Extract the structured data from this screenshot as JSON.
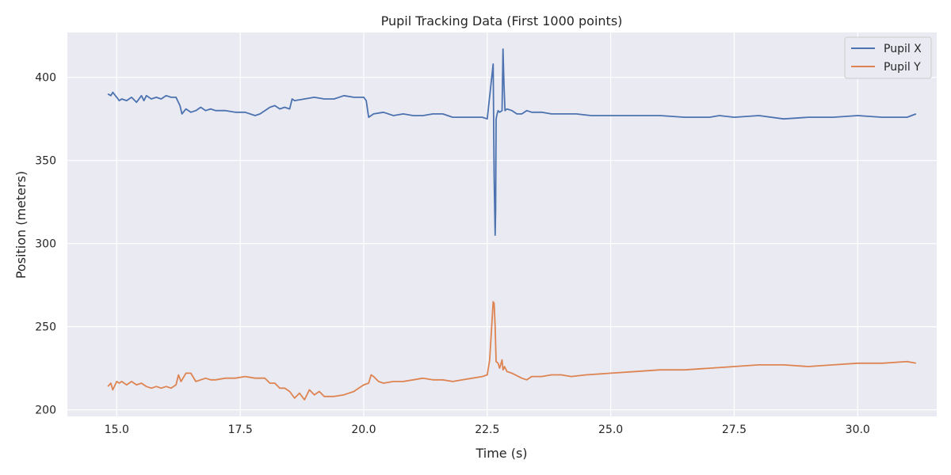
{
  "chart_data": {
    "type": "line",
    "title": "Pupil Tracking Data (First 1000 points)",
    "xlabel": "Time (s)",
    "ylabel": "Position (meters)",
    "xlim": [
      14.0,
      31.6
    ],
    "ylim": [
      196,
      427
    ],
    "xticks": [
      15.0,
      17.5,
      20.0,
      22.5,
      25.0,
      27.5,
      30.0
    ],
    "xtick_labels": [
      "15.0",
      "17.5",
      "20.0",
      "22.5",
      "25.0",
      "27.5",
      "30.0"
    ],
    "yticks": [
      200,
      250,
      300,
      350,
      400
    ],
    "ytick_labels": [
      "200",
      "250",
      "300",
      "350",
      "400"
    ],
    "grid": true,
    "legend_position": "top-right",
    "colors": {
      "background": "#eaeaf2",
      "grid": "#ffffff",
      "pupil_x": "#4c72b0",
      "pupil_y": "#dd8452"
    },
    "series": [
      {
        "name": "Pupil X",
        "color": "#4c72b0",
        "x": [
          14.82,
          14.88,
          14.92,
          15.0,
          15.05,
          15.1,
          15.2,
          15.3,
          15.4,
          15.5,
          15.55,
          15.6,
          15.7,
          15.8,
          15.9,
          16.0,
          16.1,
          16.2,
          16.28,
          16.32,
          16.4,
          16.5,
          16.6,
          16.7,
          16.8,
          16.9,
          17.0,
          17.2,
          17.4,
          17.6,
          17.8,
          17.9,
          18.0,
          18.1,
          18.2,
          18.3,
          18.4,
          18.5,
          18.55,
          18.6,
          18.8,
          19.0,
          19.2,
          19.4,
          19.6,
          19.8,
          20.0,
          20.05,
          20.1,
          20.2,
          20.4,
          20.6,
          20.8,
          21.0,
          21.2,
          21.4,
          21.6,
          21.8,
          22.0,
          22.2,
          22.4,
          22.5,
          22.62,
          22.64,
          22.66,
          22.67,
          22.68,
          22.7,
          22.72,
          22.75,
          22.8,
          22.82,
          22.84,
          22.86,
          22.9,
          23.0,
          23.1,
          23.2,
          23.3,
          23.4,
          23.6,
          23.8,
          24.0,
          24.3,
          24.6,
          25.0,
          25.5,
          26.0,
          26.5,
          27.0,
          27.2,
          27.5,
          28.0,
          28.5,
          29.0,
          29.5,
          30.0,
          30.5,
          31.0,
          31.18
        ],
        "values": [
          390,
          389,
          391,
          388,
          386,
          387,
          386,
          388,
          385,
          389,
          386,
          389,
          387,
          388,
          387,
          389,
          388,
          388,
          383,
          378,
          381,
          379,
          380,
          382,
          380,
          381,
          380,
          380,
          379,
          379,
          377,
          378,
          380,
          382,
          383,
          381,
          382,
          381,
          387,
          386,
          387,
          388,
          387,
          387,
          389,
          388,
          388,
          386,
          376,
          378,
          379,
          377,
          378,
          377,
          377,
          378,
          378,
          376,
          376,
          376,
          376,
          375,
          408,
          340,
          305,
          320,
          375,
          378,
          380,
          379,
          380,
          417,
          395,
          380,
          381,
          380,
          378,
          378,
          380,
          379,
          379,
          378,
          378,
          378,
          377,
          377,
          377,
          377,
          376,
          376,
          377,
          376,
          377,
          375,
          376,
          376,
          377,
          376,
          376,
          378
        ]
      },
      {
        "name": "Pupil Y",
        "color": "#dd8452",
        "x": [
          14.82,
          14.88,
          14.92,
          15.0,
          15.05,
          15.1,
          15.2,
          15.3,
          15.4,
          15.5,
          15.6,
          15.7,
          15.8,
          15.9,
          16.0,
          16.1,
          16.2,
          16.25,
          16.3,
          16.4,
          16.5,
          16.6,
          16.7,
          16.8,
          16.9,
          17.0,
          17.2,
          17.4,
          17.6,
          17.8,
          18.0,
          18.1,
          18.2,
          18.3,
          18.4,
          18.5,
          18.6,
          18.7,
          18.8,
          18.9,
          19.0,
          19.1,
          19.2,
          19.4,
          19.6,
          19.8,
          19.9,
          20.0,
          20.1,
          20.15,
          20.2,
          20.3,
          20.4,
          20.6,
          20.8,
          21.0,
          21.2,
          21.4,
          21.6,
          21.8,
          22.0,
          22.2,
          22.4,
          22.5,
          22.55,
          22.62,
          22.64,
          22.66,
          22.68,
          22.72,
          22.75,
          22.8,
          22.82,
          22.85,
          22.9,
          23.0,
          23.2,
          23.3,
          23.4,
          23.6,
          23.8,
          24.0,
          24.2,
          24.5,
          25.0,
          25.5,
          26.0,
          26.5,
          27.0,
          27.5,
          28.0,
          28.5,
          29.0,
          29.5,
          30.0,
          30.5,
          31.0,
          31.18
        ],
        "values": [
          214,
          216,
          212,
          217,
          216,
          217,
          215,
          217,
          215,
          216,
          214,
          213,
          214,
          213,
          214,
          213,
          215,
          221,
          217,
          222,
          222,
          217,
          218,
          219,
          218,
          218,
          219,
          219,
          220,
          219,
          219,
          216,
          216,
          213,
          213,
          211,
          207,
          210,
          206,
          212,
          209,
          211,
          208,
          208,
          209,
          211,
          213,
          215,
          216,
          221,
          220,
          217,
          216,
          217,
          217,
          218,
          219,
          218,
          218,
          217,
          218,
          219,
          220,
          221,
          230,
          265,
          264,
          250,
          229,
          228,
          225,
          230,
          224,
          226,
          223,
          222,
          219,
          218,
          220,
          220,
          221,
          221,
          220,
          221,
          222,
          223,
          224,
          224,
          225,
          226,
          227,
          227,
          226,
          227,
          228,
          228,
          229,
          228
        ]
      }
    ]
  }
}
